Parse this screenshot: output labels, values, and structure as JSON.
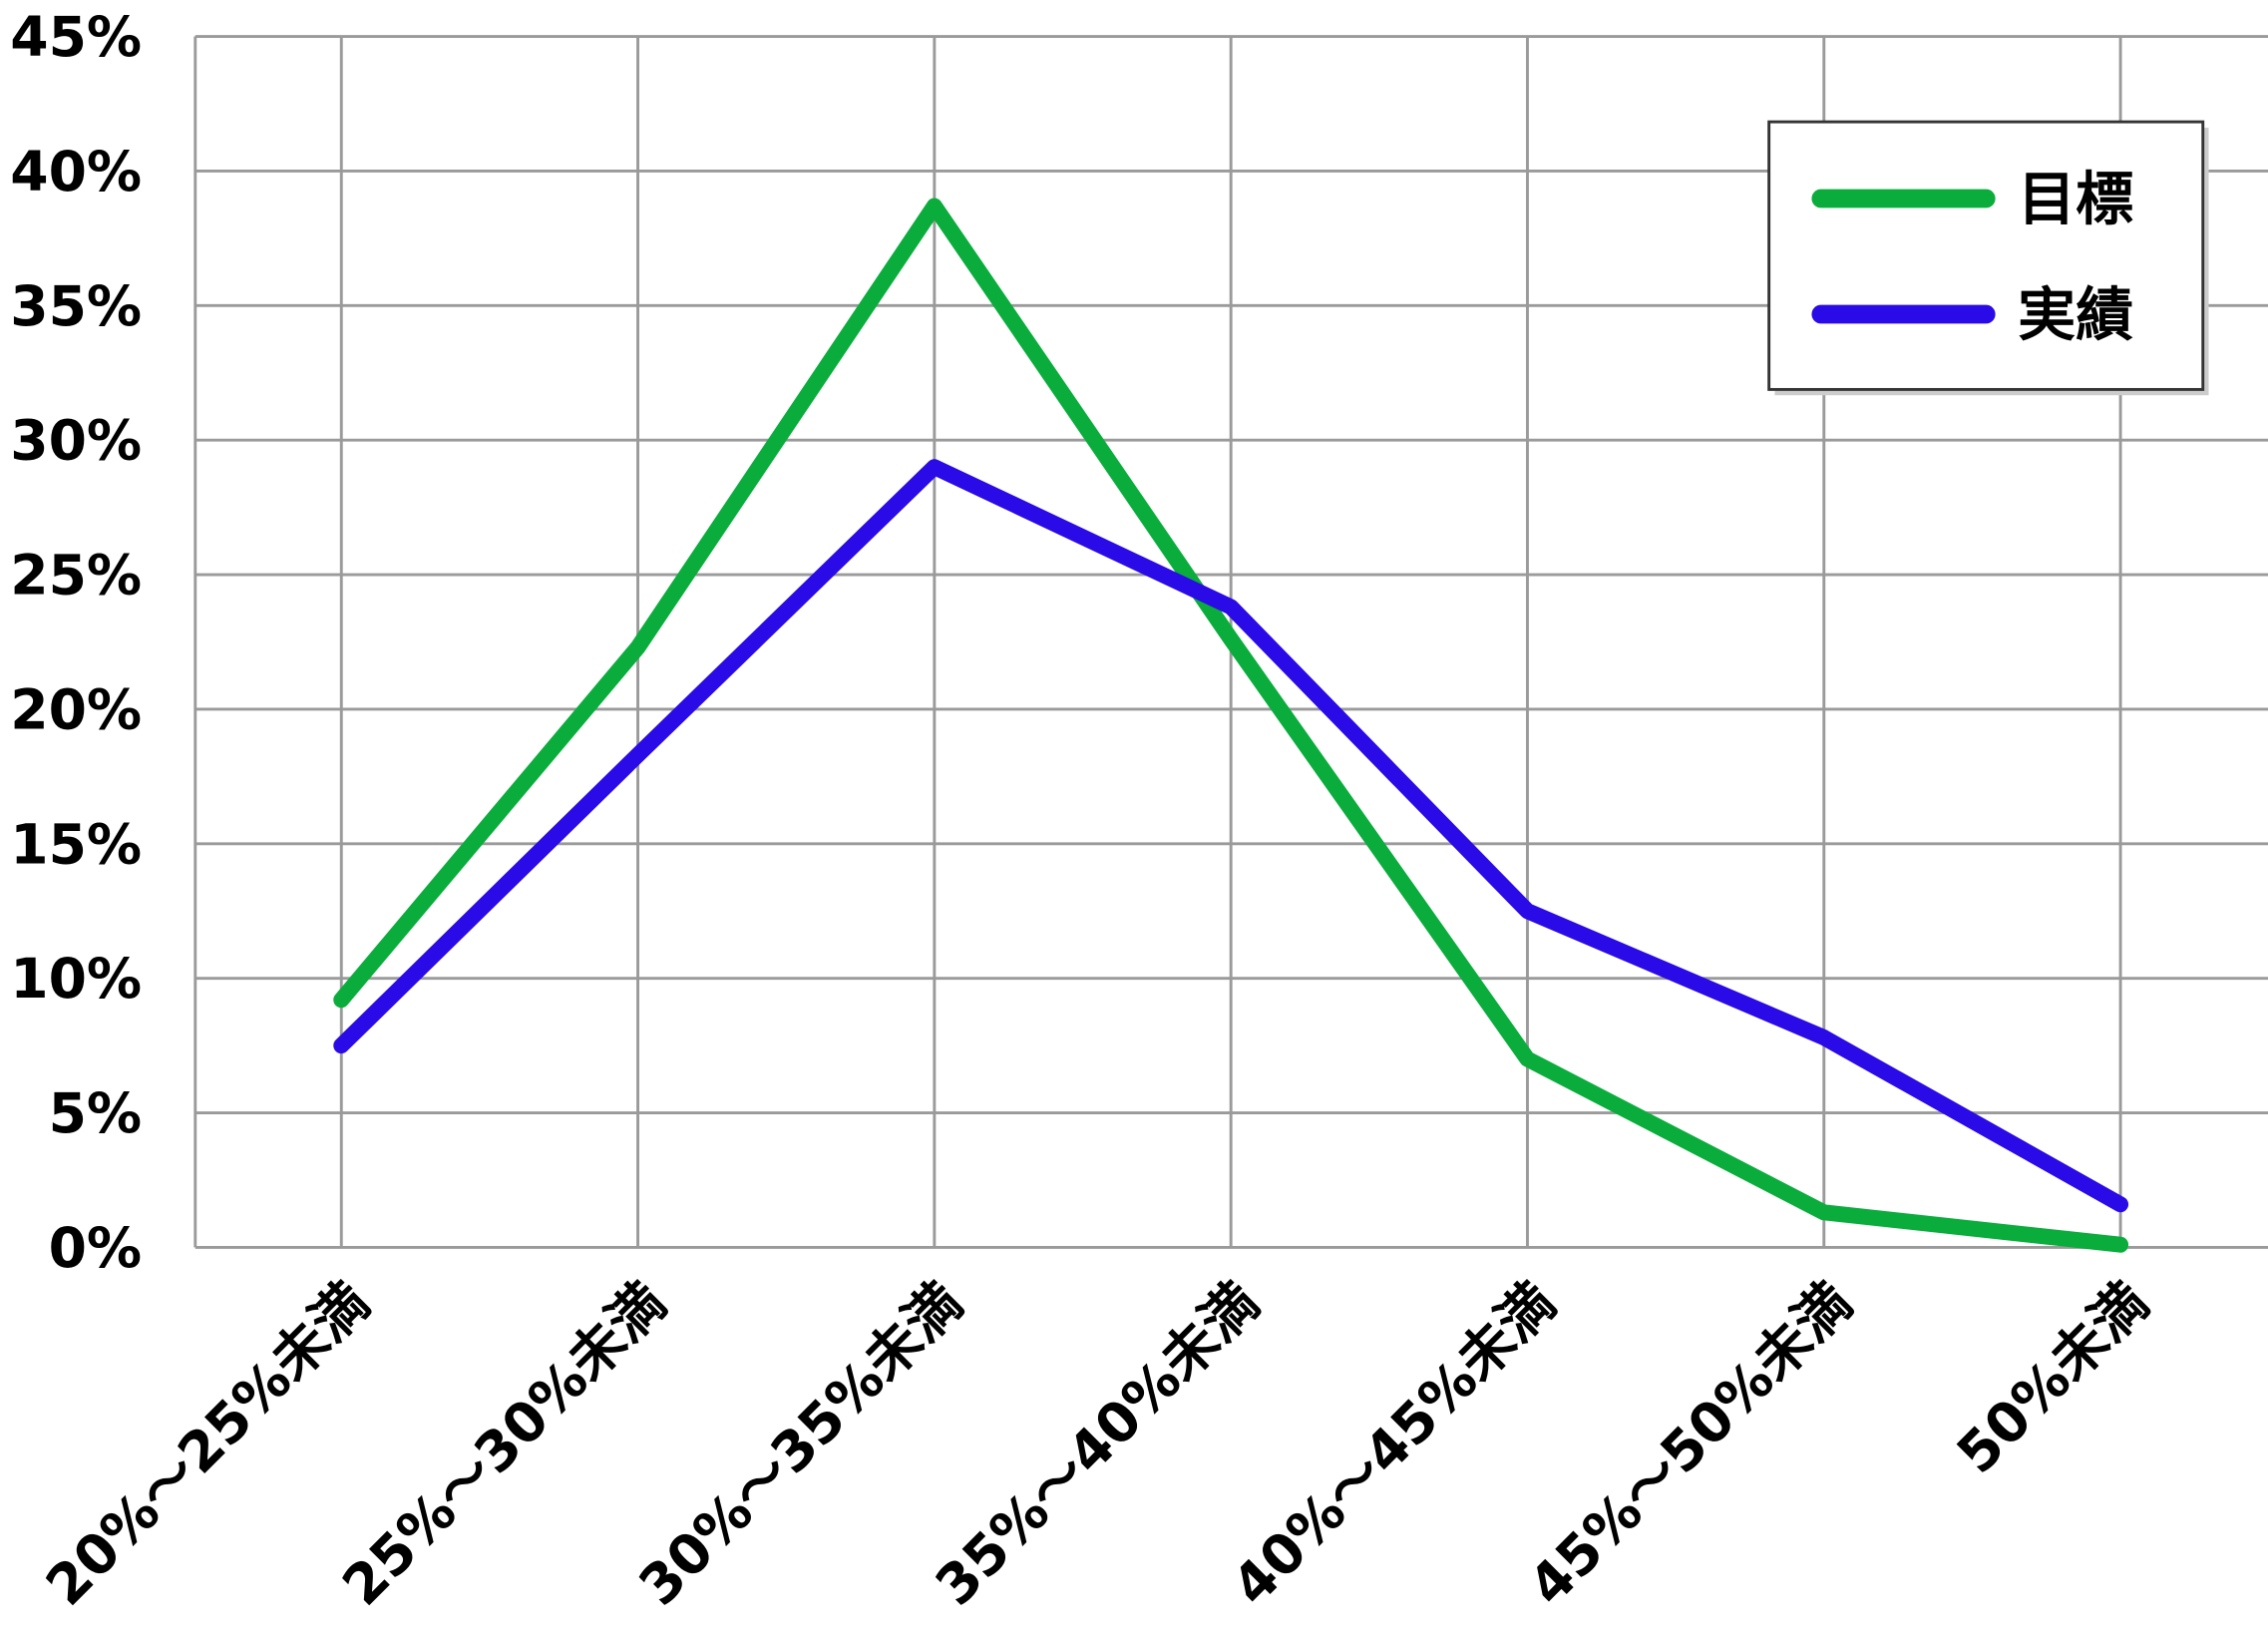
{
  "chart_data": {
    "type": "line",
    "categories": [
      "20%〜25%未満",
      "25%〜30%未満",
      "30%〜35%未満",
      "35%〜40%未満",
      "40%〜45%未満",
      "45%〜50%未満",
      "50%未満"
    ],
    "series": [
      {
        "name": "目標",
        "color": "#0aad3c",
        "values": [
          9.2,
          22.3,
          38.7,
          22.6,
          7.0,
          1.3,
          0.1
        ]
      },
      {
        "name": "実績",
        "color": "#2a0ae6",
        "values": [
          7.5,
          18.3,
          29.0,
          23.8,
          12.5,
          7.8,
          1.6
        ]
      }
    ],
    "ylim": [
      0,
      45
    ],
    "yticks": [
      {
        "value": 0,
        "label": "0%"
      },
      {
        "value": 5,
        "label": "5%"
      },
      {
        "value": 10,
        "label": "10%"
      },
      {
        "value": 15,
        "label": "15%"
      },
      {
        "value": 20,
        "label": "20%"
      },
      {
        "value": 25,
        "label": "25%"
      },
      {
        "value": 30,
        "label": "30%"
      },
      {
        "value": 35,
        "label": "35%"
      },
      {
        "value": 40,
        "label": "40%"
      },
      {
        "value": 45,
        "label": "45%"
      }
    ],
    "grid": true,
    "legend": "upper right"
  }
}
